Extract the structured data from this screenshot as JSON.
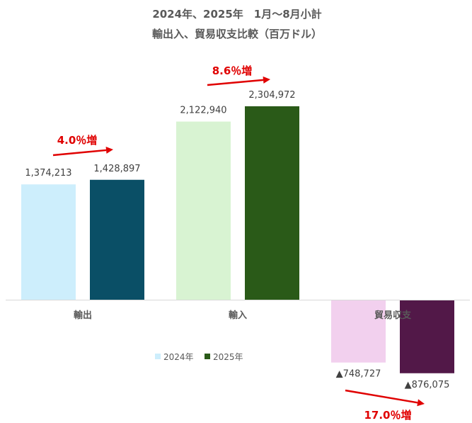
{
  "chart_data": {
    "type": "bar",
    "title": "2024年、2025年　1月～8月小計",
    "subtitle": "輸出入、貿易収支比較（百万ドル）",
    "categories": [
      "輸出",
      "輸入",
      "貿易収支"
    ],
    "series": [
      {
        "name": "2024年",
        "values": [
          1374213,
          2122940,
          -748727
        ],
        "labels": [
          "1,374,213",
          "2,122,940",
          "▲748,727"
        ],
        "colors": [
          "#cdeefc",
          "#d8f3d2",
          "#f2d0ee"
        ],
        "legend_color": "#cdeefc"
      },
      {
        "name": "2025年",
        "values": [
          1428897,
          2304972,
          -876075
        ],
        "labels": [
          "1,428,897",
          "2,304,972",
          "▲876,075"
        ],
        "colors": [
          "#0a4f66",
          "#2a5a18",
          "#521848"
        ],
        "legend_color": "#2a5a18"
      }
    ],
    "annotations": [
      "4.0％増",
      "8.6％増",
      "17.0％増"
    ],
    "legend_position": "bottom-center",
    "grid": false,
    "accent_color": "#e00000"
  }
}
